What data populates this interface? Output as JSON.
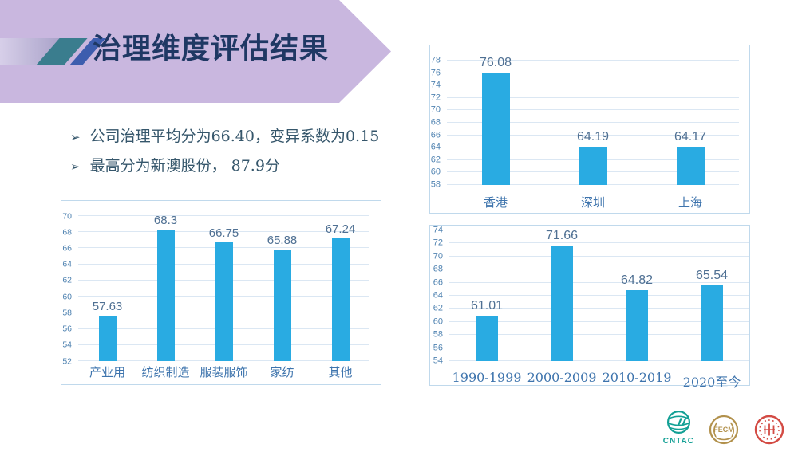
{
  "slide": {
    "title": "治理维度评估结果",
    "bullet_glyph": "➢",
    "bullets": [
      "公司治理平均分为66.40，变异系数为0.15",
      "最高分为新澳股份， 87.9分"
    ]
  },
  "colors": {
    "banner": "#c9b7df",
    "title_text": "#1f3864",
    "teal_slash": "#3a7d8e",
    "blue_slash": "#3d5dae",
    "strip_from": "#d7cfe9",
    "strip_to": "#a9a2c9",
    "bar": "#29abe2",
    "value_label": "#4f7093",
    "tick_label": "#5083b1",
    "category_label": "#3e74ad",
    "gridline": "#dbe7f3",
    "panel_border": "#c0d9ec",
    "bullet_text": "#35566b",
    "cntac": "#13a095",
    "gold": "#b2914c",
    "seal_red": "#d34b44"
  },
  "chart_data": [
    {
      "id": "by-industry",
      "type": "bar",
      "title": "",
      "xlabel": "",
      "ylabel": "",
      "categories": [
        "产业用",
        "纺织制造",
        "服装服饰",
        "家纺",
        "其他"
      ],
      "values": [
        57.63,
        68.3,
        66.75,
        65.88,
        67.24
      ],
      "value_labels": [
        "57.63",
        "68.3",
        "66.75",
        "65.88",
        "67.24"
      ],
      "ylim": [
        52,
        70
      ],
      "ytick_step": 2,
      "grid": true,
      "legend": false
    },
    {
      "id": "by-listing-place",
      "type": "bar",
      "title": "",
      "xlabel": "",
      "ylabel": "",
      "categories": [
        "香港",
        "深圳",
        "上海"
      ],
      "values": [
        76.08,
        64.19,
        64.17
      ],
      "value_labels": [
        "76.08",
        "64.19",
        "64.17"
      ],
      "ylim": [
        58,
        78
      ],
      "ytick_step": 2,
      "grid": true,
      "legend": false
    },
    {
      "id": "by-period",
      "type": "bar",
      "title": "",
      "xlabel": "",
      "ylabel": "",
      "categories": [
        "1990-1999",
        "2000-2009",
        "2010-2019",
        "2020至今"
      ],
      "values": [
        61.01,
        71.66,
        64.82,
        65.54
      ],
      "value_labels": [
        "61.01",
        "71.66",
        "64.82",
        "65.54"
      ],
      "label_dy": [
        0,
        0,
        0,
        6
      ],
      "ylim": [
        54,
        74
      ],
      "ytick_step": 2,
      "grid": true,
      "legend": false
    }
  ],
  "logos": {
    "cntac_label": "CNTAC",
    "fecm_label": "FECM"
  }
}
